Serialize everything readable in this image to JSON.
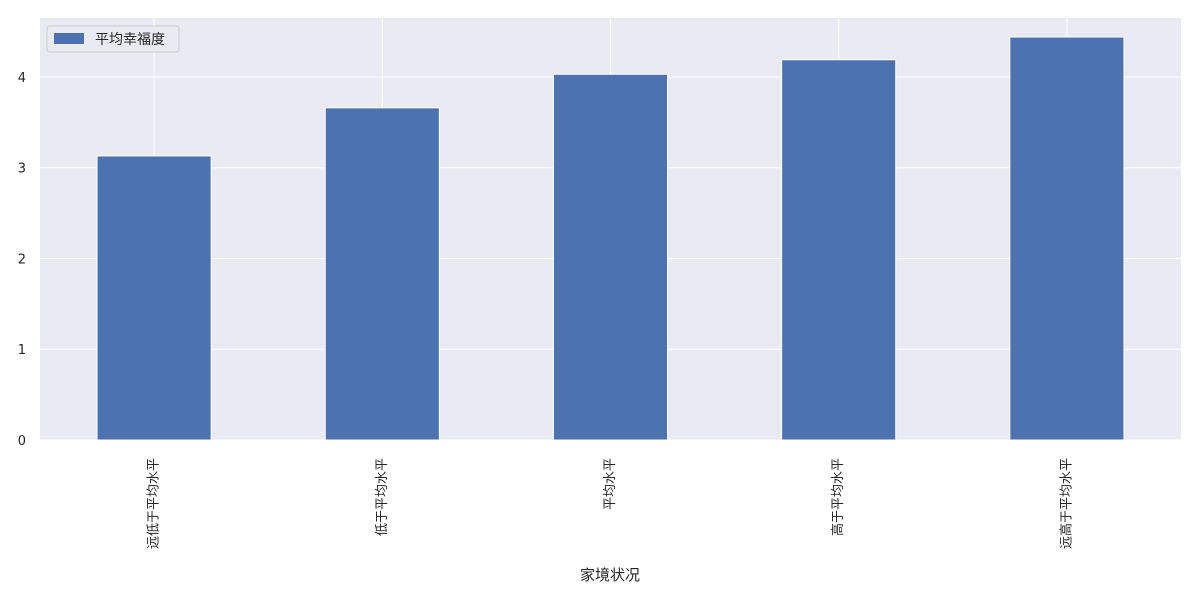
{
  "chart_data": {
    "type": "bar",
    "categories": [
      "远低于平均水平",
      "低于平均水平",
      "平均水平",
      "高于平均水平",
      "远高于平均水平"
    ],
    "series": [
      {
        "name": "平均幸福度",
        "values": [
          3.13,
          3.66,
          4.03,
          4.19,
          4.44
        ]
      }
    ],
    "xlabel": "家境状况",
    "ylabel": "",
    "ylim": [
      0,
      4.65
    ],
    "yticks": [
      "0",
      "1",
      "2",
      "3",
      "4"
    ],
    "grid": true,
    "legend_position": "upper-left",
    "colors": {
      "bar": "#4c72b0",
      "background": "#eaeaf2",
      "grid": "#ffffff"
    }
  }
}
